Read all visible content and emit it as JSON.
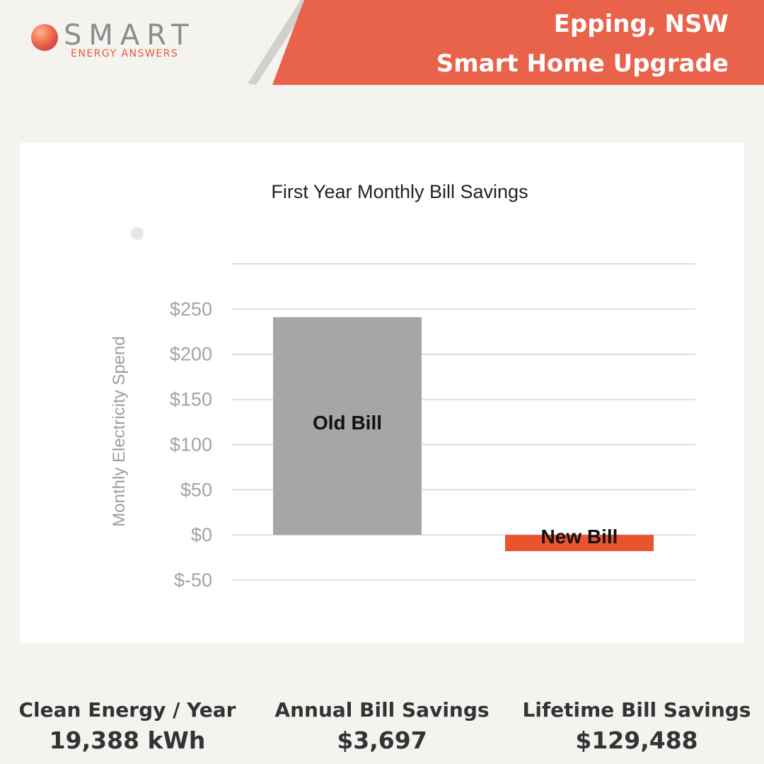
{
  "brand": {
    "name": "SMART",
    "tagline": "ENERGY ANSWERS",
    "colors": {
      "accent": "#e8634a",
      "logo_text": "#8c8c8c",
      "tagline": "#e65a35"
    }
  },
  "header": {
    "location": "Epping, NSW",
    "subtitle": "Smart Home Upgrade"
  },
  "chart_data": {
    "type": "bar",
    "title": "First Year Monthly Bill Savings",
    "ylabel": "Monthly Electricity Spend",
    "xlabel": "",
    "categories": [
      "Old Bill",
      "New Bill"
    ],
    "values": [
      241,
      -18
    ],
    "colors": [
      "#a6a6a6",
      "#e9542f"
    ],
    "ylim": [
      -50,
      300
    ],
    "yticks": [
      -50,
      0,
      50,
      100,
      150,
      200,
      250,
      300
    ],
    "ytick_labels": [
      "$-50",
      "$0",
      "$50",
      "$100",
      "$150",
      "$200",
      "$250",
      ""
    ],
    "grid": true,
    "legend": "top-left"
  },
  "stats": [
    {
      "label": "Clean Energy / Year",
      "value": "19,388 kWh"
    },
    {
      "label": "Annual Bill Savings",
      "value": "$3,697"
    },
    {
      "label": "Lifetime Bill Savings",
      "value": "$129,488"
    }
  ]
}
